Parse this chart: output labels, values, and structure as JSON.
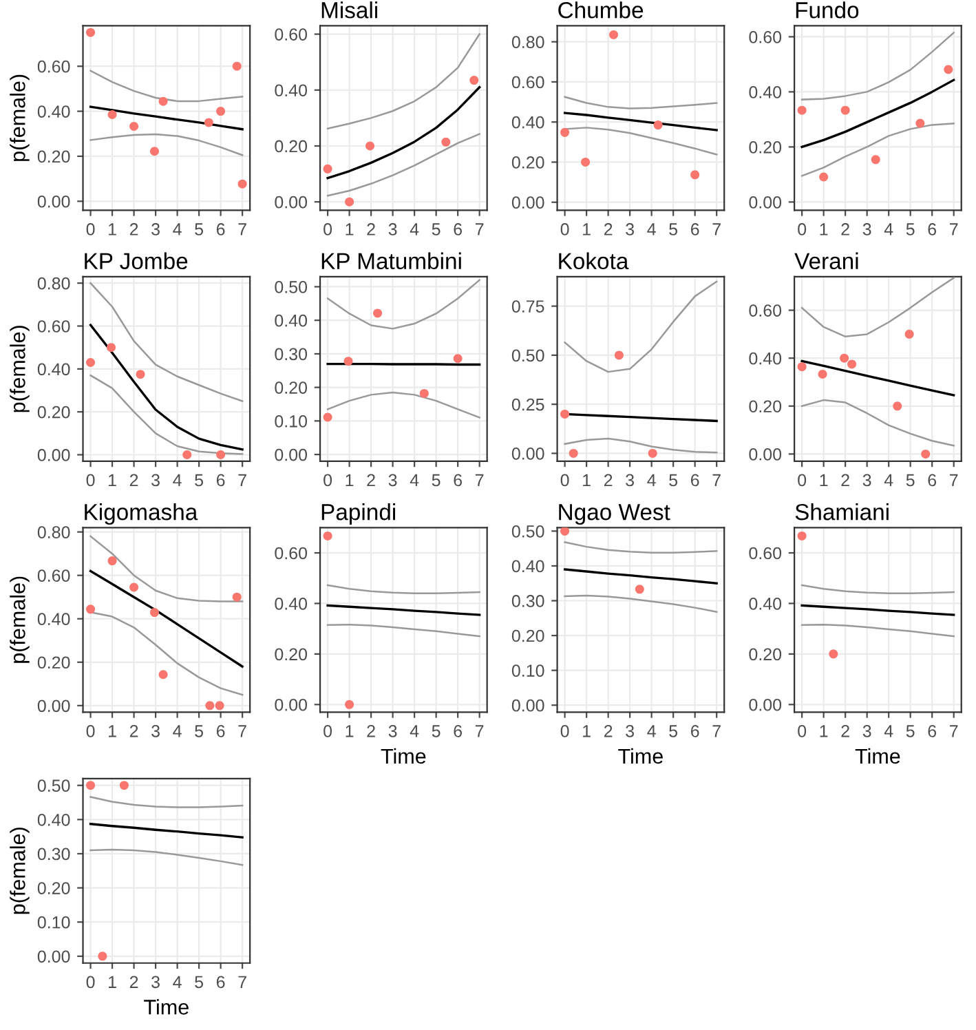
{
  "chart_data": [
    {
      "type": "scatter",
      "ylabel": "p(female)",
      "xlim": [
        -0.35,
        7.35
      ],
      "xticks": [
        0,
        1,
        2,
        3,
        4,
        5,
        6,
        7
      ],
      "ylim": [
        -0.04,
        0.78
      ],
      "yticks": [
        {
          "value": 0,
          "label": "0.00"
        },
        {
          "value": 0.2,
          "label": "0.20"
        },
        {
          "value": 0.4,
          "label": "0.40"
        },
        {
          "value": 0.6,
          "label": "0.60"
        }
      ],
      "grid": true,
      "series": [
        {
          "type": "scatter",
          "color": "#f8766d",
          "x": [
            0,
            1,
            2,
            2.95,
            3.35,
            5.45,
            6,
            6.75,
            7
          ],
          "values": [
            0.75,
            0.385,
            0.333,
            0.222,
            0.444,
            0.35,
            0.4,
            0.6,
            0.077
          ]
        },
        {
          "type": "line",
          "color": "#000000",
          "x": [
            0,
            1,
            2,
            3,
            4,
            5,
            6,
            7
          ],
          "values": [
            0.42,
            0.405,
            0.39,
            0.377,
            0.363,
            0.35,
            0.335,
            0.32
          ]
        },
        {
          "type": "line",
          "color": "#999999",
          "x": [
            0,
            1,
            2,
            3,
            4,
            5,
            6,
            7
          ],
          "values": [
            0.58,
            0.53,
            0.49,
            0.46,
            0.445,
            0.445,
            0.455,
            0.465
          ]
        },
        {
          "type": "line",
          "color": "#999999",
          "x": [
            0,
            1,
            2,
            3,
            4,
            5,
            6,
            7
          ],
          "values": [
            0.272,
            0.285,
            0.295,
            0.298,
            0.29,
            0.27,
            0.24,
            0.205
          ]
        }
      ]
    },
    {
      "type": "scatter",
      "title": "Misali",
      "xlim": [
        -0.35,
        7.35
      ],
      "xticks": [
        0,
        1,
        2,
        3,
        4,
        5,
        6,
        7
      ],
      "ylim": [
        -0.03,
        0.63
      ],
      "yticks": [
        {
          "value": 0,
          "label": "0.00"
        },
        {
          "value": 0.2,
          "label": "0.20"
        },
        {
          "value": 0.4,
          "label": "0.40"
        },
        {
          "value": 0.6,
          "label": "0.60"
        }
      ],
      "grid": true,
      "series": [
        {
          "type": "scatter",
          "color": "#f8766d",
          "x": [
            0,
            1,
            1.95,
            5.45,
            6.75
          ],
          "values": [
            0.118,
            0,
            0.2,
            0.214,
            0.435
          ]
        },
        {
          "type": "line",
          "color": "#000000",
          "x": [
            0,
            1,
            2,
            3,
            4,
            5,
            6,
            7
          ],
          "values": [
            0.085,
            0.11,
            0.14,
            0.175,
            0.215,
            0.265,
            0.33,
            0.41
          ]
        },
        {
          "type": "line",
          "color": "#999999",
          "x": [
            0,
            1,
            2,
            3,
            4,
            5,
            6,
            7
          ],
          "values": [
            0.262,
            0.28,
            0.3,
            0.325,
            0.36,
            0.41,
            0.48,
            0.6
          ]
        },
        {
          "type": "line",
          "color": "#999999",
          "x": [
            0,
            1,
            2,
            3,
            4,
            5,
            6,
            7
          ],
          "values": [
            0.022,
            0.04,
            0.065,
            0.095,
            0.13,
            0.17,
            0.21,
            0.243
          ]
        }
      ]
    },
    {
      "type": "scatter",
      "title": "Chumbe",
      "xlim": [
        -0.35,
        7.35
      ],
      "xticks": [
        0,
        1,
        2,
        3,
        4,
        5,
        6,
        7
      ],
      "ylim": [
        -0.04,
        0.88
      ],
      "yticks": [
        {
          "value": 0,
          "label": "0.00"
        },
        {
          "value": 0.2,
          "label": "0.20"
        },
        {
          "value": 0.4,
          "label": "0.40"
        },
        {
          "value": 0.6,
          "label": "0.60"
        },
        {
          "value": 0.8,
          "label": "0.80"
        }
      ],
      "grid": true,
      "series": [
        {
          "type": "scatter",
          "color": "#f8766d",
          "x": [
            0,
            0.95,
            2.25,
            4.3,
            6
          ],
          "values": [
            0.348,
            0.2,
            0.835,
            0.385,
            0.137
          ]
        },
        {
          "type": "line",
          "color": "#000000",
          "x": [
            0,
            1,
            2,
            3,
            4,
            5,
            6,
            7
          ],
          "values": [
            0.445,
            0.435,
            0.422,
            0.41,
            0.397,
            0.385,
            0.372,
            0.36
          ]
        },
        {
          "type": "line",
          "color": "#999999",
          "x": [
            0,
            1,
            2,
            3,
            4,
            5,
            6,
            7
          ],
          "values": [
            0.525,
            0.495,
            0.475,
            0.468,
            0.47,
            0.478,
            0.486,
            0.495
          ]
        },
        {
          "type": "line",
          "color": "#999999",
          "x": [
            0,
            1,
            2,
            3,
            4,
            5,
            6,
            7
          ],
          "values": [
            0.365,
            0.372,
            0.362,
            0.345,
            0.32,
            0.295,
            0.268,
            0.238
          ]
        }
      ]
    },
    {
      "type": "scatter",
      "title": "Fundo",
      "xlim": [
        -0.35,
        7.35
      ],
      "xticks": [
        0,
        1,
        2,
        3,
        4,
        5,
        6,
        7
      ],
      "ylim": [
        -0.03,
        0.64
      ],
      "yticks": [
        {
          "value": 0,
          "label": "0.00"
        },
        {
          "value": 0.2,
          "label": "0.20"
        },
        {
          "value": 0.4,
          "label": "0.40"
        },
        {
          "value": 0.6,
          "label": "0.60"
        }
      ],
      "grid": true,
      "series": [
        {
          "type": "scatter",
          "color": "#f8766d",
          "x": [
            0,
            1,
            2,
            3.4,
            5.45,
            6.75
          ],
          "values": [
            0.333,
            0.091,
            0.333,
            0.154,
            0.286,
            0.481
          ]
        },
        {
          "type": "line",
          "color": "#000000",
          "x": [
            0,
            1,
            2,
            3,
            4,
            5,
            6,
            7
          ],
          "values": [
            0.2,
            0.225,
            0.255,
            0.29,
            0.325,
            0.36,
            0.4,
            0.443
          ]
        },
        {
          "type": "line",
          "color": "#999999",
          "x": [
            0,
            1,
            2,
            3,
            4,
            5,
            6,
            7
          ],
          "values": [
            0.372,
            0.375,
            0.385,
            0.4,
            0.435,
            0.48,
            0.545,
            0.615
          ]
        },
        {
          "type": "line",
          "color": "#999999",
          "x": [
            0,
            1,
            2,
            3,
            4,
            5,
            6,
            7
          ],
          "values": [
            0.095,
            0.125,
            0.165,
            0.2,
            0.24,
            0.265,
            0.28,
            0.285
          ]
        }
      ]
    },
    {
      "type": "scatter",
      "title": "KP Jombe",
      "ylabel": "p(female)",
      "xlim": [
        -0.35,
        7.35
      ],
      "xticks": [
        0,
        1,
        2,
        3,
        4,
        5,
        6,
        7
      ],
      "ylim": [
        -0.03,
        0.83
      ],
      "yticks": [
        {
          "value": 0,
          "label": "0.00"
        },
        {
          "value": 0.2,
          "label": "0.20"
        },
        {
          "value": 0.4,
          "label": "0.40"
        },
        {
          "value": 0.6,
          "label": "0.60"
        },
        {
          "value": 0.8,
          "label": "0.80"
        }
      ],
      "grid": true,
      "series": [
        {
          "type": "scatter",
          "color": "#f8766d",
          "x": [
            0,
            0.95,
            2.3,
            4.45,
            6
          ],
          "values": [
            0.43,
            0.5,
            0.375,
            0,
            0
          ]
        },
        {
          "type": "line",
          "color": "#000000",
          "x": [
            0,
            1,
            2,
            3,
            4,
            5,
            6,
            7
          ],
          "values": [
            0.605,
            0.475,
            0.34,
            0.21,
            0.13,
            0.075,
            0.045,
            0.025
          ]
        },
        {
          "type": "line",
          "color": "#999999",
          "x": [
            0,
            1,
            2,
            3,
            4,
            5,
            6,
            7
          ],
          "values": [
            0.8,
            0.69,
            0.53,
            0.42,
            0.365,
            0.325,
            0.285,
            0.25
          ]
        },
        {
          "type": "line",
          "color": "#999999",
          "x": [
            0,
            1,
            2,
            3,
            4,
            5,
            6,
            7
          ],
          "values": [
            0.37,
            0.31,
            0.2,
            0.1,
            0.04,
            0.015,
            0.007,
            0.003
          ]
        }
      ]
    },
    {
      "type": "scatter",
      "title": "KP Matumbini",
      "xlim": [
        -0.35,
        7.35
      ],
      "xticks": [
        0,
        1,
        2,
        3,
        4,
        5,
        6,
        7
      ],
      "ylim": [
        -0.02,
        0.53
      ],
      "yticks": [
        {
          "value": 0,
          "label": "0.00"
        },
        {
          "value": 0.1,
          "label": "0.10"
        },
        {
          "value": 0.2,
          "label": "0.20"
        },
        {
          "value": 0.3,
          "label": "0.30"
        },
        {
          "value": 0.4,
          "label": "0.40"
        },
        {
          "value": 0.5,
          "label": "0.50"
        }
      ],
      "grid": true,
      "series": [
        {
          "type": "scatter",
          "color": "#f8766d",
          "x": [
            0,
            0.95,
            2.3,
            4.45,
            6
          ],
          "values": [
            0.111,
            0.278,
            0.421,
            0.182,
            0.286
          ]
        },
        {
          "type": "line",
          "color": "#000000",
          "x": [
            0,
            1,
            2,
            3,
            4,
            5,
            6,
            7
          ],
          "values": [
            0.27,
            0.27,
            0.27,
            0.269,
            0.269,
            0.269,
            0.268,
            0.268
          ]
        },
        {
          "type": "line",
          "color": "#999999",
          "x": [
            0,
            1,
            2,
            3,
            4,
            5,
            6,
            7
          ],
          "values": [
            0.465,
            0.42,
            0.385,
            0.375,
            0.39,
            0.42,
            0.465,
            0.52
          ]
        },
        {
          "type": "line",
          "color": "#999999",
          "x": [
            0,
            1,
            2,
            3,
            4,
            5,
            6,
            7
          ],
          "values": [
            0.135,
            0.16,
            0.178,
            0.185,
            0.178,
            0.16,
            0.135,
            0.11
          ]
        }
      ]
    },
    {
      "type": "scatter",
      "title": "Kokota",
      "xlim": [
        -0.35,
        7.35
      ],
      "xticks": [
        0,
        1,
        2,
        3,
        4,
        5,
        6,
        7
      ],
      "ylim": [
        -0.04,
        0.9
      ],
      "yticks": [
        {
          "value": 0,
          "label": "0.00"
        },
        0.25,
        {
          "value": 0.5,
          "label": "0.50"
        },
        0.75
      ],
      "grid": true,
      "series": [
        {
          "type": "scatter",
          "color": "#f8766d",
          "x": [
            0,
            0.4,
            2.5,
            4.05
          ],
          "values": [
            0.2,
            0,
            0.5,
            0
          ]
        },
        {
          "type": "line",
          "color": "#000000",
          "x": [
            0,
            1,
            2,
            3,
            4,
            5,
            6,
            7
          ],
          "values": [
            0.2,
            0.195,
            0.19,
            0.185,
            0.18,
            0.175,
            0.17,
            0.165
          ]
        },
        {
          "type": "line",
          "color": "#999999",
          "x": [
            0,
            1,
            2,
            3,
            4,
            5,
            6,
            7
          ],
          "values": [
            0.565,
            0.47,
            0.415,
            0.43,
            0.53,
            0.67,
            0.8,
            0.875
          ]
        },
        {
          "type": "line",
          "color": "#999999",
          "x": [
            0,
            1,
            2,
            3,
            4,
            5,
            6,
            7
          ],
          "values": [
            0.048,
            0.068,
            0.075,
            0.06,
            0.035,
            0.018,
            0.008,
            0.004
          ]
        }
      ]
    },
    {
      "type": "scatter",
      "title": "Verani",
      "xlim": [
        -0.35,
        7.35
      ],
      "xticks": [
        0,
        1,
        2,
        3,
        4,
        5,
        6,
        7
      ],
      "ylim": [
        -0.03,
        0.74
      ],
      "yticks": [
        {
          "value": 0,
          "label": "0.00"
        },
        {
          "value": 0.2,
          "label": "0.20"
        },
        {
          "value": 0.4,
          "label": "0.40"
        },
        {
          "value": 0.6,
          "label": "0.60"
        }
      ],
      "grid": true,
      "series": [
        {
          "type": "scatter",
          "color": "#f8766d",
          "x": [
            0,
            0.95,
            1.95,
            2.3,
            4.4,
            4.95,
            5.7
          ],
          "values": [
            0.364,
            0.333,
            0.4,
            0.375,
            0.2,
            0.5,
            0
          ]
        },
        {
          "type": "line",
          "color": "#000000",
          "x": [
            0,
            1,
            2,
            3,
            4,
            5,
            6,
            7
          ],
          "values": [
            0.388,
            0.368,
            0.347,
            0.326,
            0.306,
            0.285,
            0.265,
            0.245
          ]
        },
        {
          "type": "line",
          "color": "#999999",
          "x": [
            0,
            1,
            2,
            3,
            4,
            5,
            6,
            7
          ],
          "values": [
            0.61,
            0.53,
            0.49,
            0.5,
            0.55,
            0.61,
            0.675,
            0.735
          ]
        },
        {
          "type": "line",
          "color": "#999999",
          "x": [
            0,
            1,
            2,
            3,
            4,
            5,
            6,
            7
          ],
          "values": [
            0.2,
            0.225,
            0.215,
            0.17,
            0.12,
            0.085,
            0.055,
            0.035
          ]
        }
      ]
    },
    {
      "type": "scatter",
      "title": "Kigomasha",
      "ylabel": "p(female)",
      "xlim": [
        -0.35,
        7.35
      ],
      "xticks": [
        0,
        1,
        2,
        3,
        4,
        5,
        6,
        7
      ],
      "ylim": [
        -0.03,
        0.82
      ],
      "yticks": [
        {
          "value": 0,
          "label": "0.00"
        },
        {
          "value": 0.2,
          "label": "0.20"
        },
        {
          "value": 0.4,
          "label": "0.40"
        },
        {
          "value": 0.6,
          "label": "0.60"
        },
        {
          "value": 0.8,
          "label": "0.80"
        }
      ],
      "grid": true,
      "series": [
        {
          "type": "scatter",
          "color": "#f8766d",
          "x": [
            0,
            1,
            2,
            2.95,
            3.35,
            5.5,
            5.95,
            6.75
          ],
          "values": [
            0.444,
            0.667,
            0.545,
            0.429,
            0.143,
            0,
            0,
            0.5
          ]
        },
        {
          "type": "line",
          "color": "#000000",
          "x": [
            0,
            1,
            2,
            3,
            4,
            5,
            6,
            7
          ],
          "values": [
            0.62,
            0.56,
            0.5,
            0.44,
            0.375,
            0.31,
            0.245,
            0.18
          ]
        },
        {
          "type": "line",
          "color": "#999999",
          "x": [
            0,
            1,
            2,
            3,
            4,
            5,
            6,
            7
          ],
          "values": [
            0.78,
            0.7,
            0.6,
            0.53,
            0.495,
            0.483,
            0.48,
            0.48
          ]
        },
        {
          "type": "line",
          "color": "#999999",
          "x": [
            0,
            1,
            2,
            3,
            4,
            5,
            6,
            7
          ],
          "values": [
            0.43,
            0.41,
            0.36,
            0.28,
            0.195,
            0.13,
            0.08,
            0.05
          ]
        }
      ]
    },
    {
      "type": "scatter",
      "title": "Papindi",
      "xlabel": "Time",
      "xlim": [
        -0.35,
        7.35
      ],
      "xticks": [
        0,
        1,
        2,
        3,
        4,
        5,
        6,
        7
      ],
      "ylim": [
        -0.03,
        0.7
      ],
      "yticks": [
        {
          "value": 0,
          "label": "0.00"
        },
        {
          "value": 0.2,
          "label": "0.20"
        },
        {
          "value": 0.4,
          "label": "0.40"
        },
        {
          "value": 0.6,
          "label": "0.60"
        }
      ],
      "grid": true,
      "series": [
        {
          "type": "scatter",
          "color": "#f8766d",
          "x": [
            0,
            1
          ],
          "values": [
            0.667,
            0
          ]
        },
        {
          "type": "line",
          "color": "#000000",
          "x": [
            0,
            1,
            2,
            3,
            4,
            5,
            6,
            7
          ],
          "values": [
            0.392,
            0.387,
            0.382,
            0.377,
            0.371,
            0.366,
            0.36,
            0.355
          ]
        },
        {
          "type": "line",
          "color": "#999999",
          "x": [
            0,
            1,
            2,
            3,
            4,
            5,
            6,
            7
          ],
          "values": [
            0.472,
            0.458,
            0.448,
            0.443,
            0.44,
            0.44,
            0.442,
            0.445
          ]
        },
        {
          "type": "line",
          "color": "#999999",
          "x": [
            0,
            1,
            2,
            3,
            4,
            5,
            6,
            7
          ],
          "values": [
            0.315,
            0.316,
            0.313,
            0.306,
            0.298,
            0.29,
            0.28,
            0.27
          ]
        }
      ]
    },
    {
      "type": "scatter",
      "title": "Ngao West",
      "xlabel": "Time",
      "xlim": [
        -0.35,
        7.35
      ],
      "xticks": [
        0,
        1,
        2,
        3,
        4,
        5,
        6,
        7
      ],
      "ylim": [
        -0.02,
        0.51
      ],
      "yticks": [
        {
          "value": 0,
          "label": "0.00"
        },
        {
          "value": 0.1,
          "label": "0.10"
        },
        {
          "value": 0.2,
          "label": "0.20"
        },
        {
          "value": 0.3,
          "label": "0.30"
        },
        {
          "value": 0.4,
          "label": "0.40"
        },
        {
          "value": 0.5,
          "label": "0.50"
        }
      ],
      "grid": true,
      "series": [
        {
          "type": "scatter",
          "color": "#f8766d",
          "x": [
            0,
            3.45
          ],
          "values": [
            0.5,
            0.333
          ]
        },
        {
          "type": "line",
          "color": "#000000",
          "x": [
            0,
            1,
            2,
            3,
            4,
            5,
            6,
            7
          ],
          "values": [
            0.39,
            0.384,
            0.378,
            0.373,
            0.367,
            0.362,
            0.356,
            0.35
          ]
        },
        {
          "type": "line",
          "color": "#999999",
          "x": [
            0,
            1,
            2,
            3,
            4,
            5,
            6,
            7
          ],
          "values": [
            0.468,
            0.455,
            0.446,
            0.441,
            0.438,
            0.438,
            0.44,
            0.443
          ]
        },
        {
          "type": "line",
          "color": "#999999",
          "x": [
            0,
            1,
            2,
            3,
            4,
            5,
            6,
            7
          ],
          "values": [
            0.313,
            0.315,
            0.312,
            0.306,
            0.298,
            0.29,
            0.28,
            0.268
          ]
        }
      ]
    },
    {
      "type": "scatter",
      "title": "Shamiani",
      "xlabel": "Time",
      "xlim": [
        -0.35,
        7.35
      ],
      "xticks": [
        0,
        1,
        2,
        3,
        4,
        5,
        6,
        7
      ],
      "ylim": [
        -0.03,
        0.7
      ],
      "yticks": [
        {
          "value": 0,
          "label": "0.00"
        },
        {
          "value": 0.2,
          "label": "0.20"
        },
        {
          "value": 0.4,
          "label": "0.40"
        },
        {
          "value": 0.6,
          "label": "0.60"
        }
      ],
      "grid": true,
      "series": [
        {
          "type": "scatter",
          "color": "#f8766d",
          "x": [
            0,
            1.45
          ],
          "values": [
            0.667,
            0.2
          ]
        },
        {
          "type": "line",
          "color": "#000000",
          "x": [
            0,
            1,
            2,
            3,
            4,
            5,
            6,
            7
          ],
          "values": [
            0.392,
            0.387,
            0.382,
            0.377,
            0.371,
            0.366,
            0.36,
            0.355
          ]
        },
        {
          "type": "line",
          "color": "#999999",
          "x": [
            0,
            1,
            2,
            3,
            4,
            5,
            6,
            7
          ],
          "values": [
            0.472,
            0.458,
            0.448,
            0.443,
            0.44,
            0.44,
            0.442,
            0.445
          ]
        },
        {
          "type": "line",
          "color": "#999999",
          "x": [
            0,
            1,
            2,
            3,
            4,
            5,
            6,
            7
          ],
          "values": [
            0.315,
            0.316,
            0.313,
            0.306,
            0.298,
            0.29,
            0.28,
            0.27
          ]
        }
      ]
    },
    {
      "type": "scatter",
      "ylabel": "p(female)",
      "xlabel": "Time",
      "xlim": [
        -0.35,
        7.35
      ],
      "xticks": [
        0,
        1,
        2,
        3,
        4,
        5,
        6,
        7
      ],
      "ylim": [
        -0.02,
        0.52
      ],
      "yticks": [
        {
          "value": 0,
          "label": "0.00"
        },
        {
          "value": 0.1,
          "label": "0.10"
        },
        {
          "value": 0.2,
          "label": "0.20"
        },
        {
          "value": 0.3,
          "label": "0.30"
        },
        {
          "value": 0.4,
          "label": "0.40"
        },
        {
          "value": 0.5,
          "label": "0.50"
        }
      ],
      "grid": true,
      "series": [
        {
          "type": "scatter",
          "color": "#f8766d",
          "x": [
            0,
            0.55,
            1.55
          ],
          "values": [
            0.5,
            0,
            0.5
          ]
        },
        {
          "type": "line",
          "color": "#000000",
          "x": [
            0,
            1,
            2,
            3,
            4,
            5,
            6,
            7
          ],
          "values": [
            0.387,
            0.381,
            0.376,
            0.37,
            0.365,
            0.359,
            0.354,
            0.348
          ]
        },
        {
          "type": "line",
          "color": "#999999",
          "x": [
            0,
            1,
            2,
            3,
            4,
            5,
            6,
            7
          ],
          "values": [
            0.466,
            0.452,
            0.443,
            0.438,
            0.436,
            0.436,
            0.438,
            0.441
          ]
        },
        {
          "type": "line",
          "color": "#999999",
          "x": [
            0,
            1,
            2,
            3,
            4,
            5,
            6,
            7
          ],
          "values": [
            0.31,
            0.312,
            0.31,
            0.305,
            0.297,
            0.288,
            0.278,
            0.267
          ]
        }
      ]
    }
  ]
}
